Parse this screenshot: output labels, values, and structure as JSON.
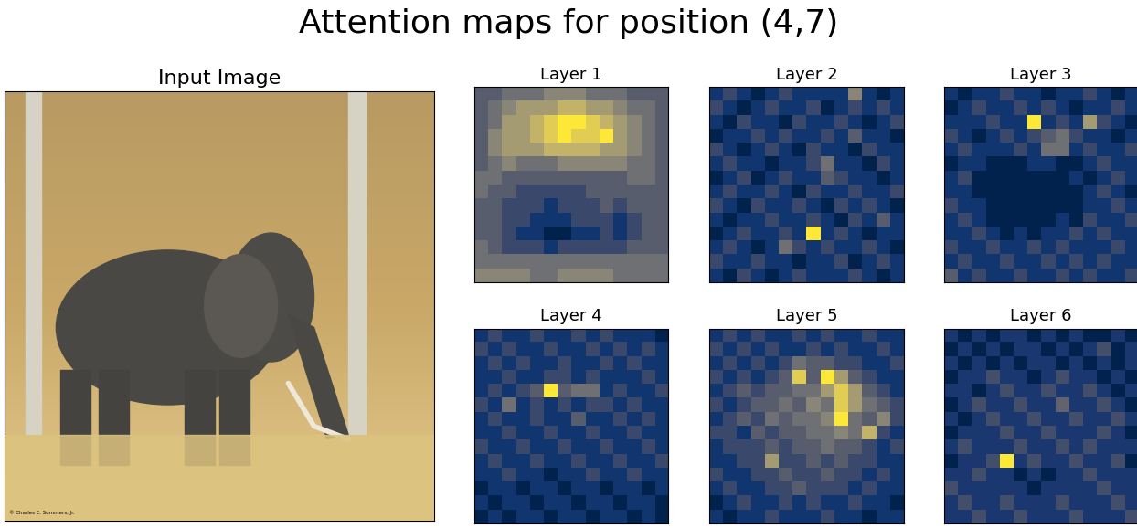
{
  "title": "Attention maps for position (4,7)",
  "input_image": {
    "title": "Input Image",
    "credit": "© Charles E. Summers, Jr."
  },
  "chart_data": [
    {
      "type": "heatmap",
      "title": "Layer 1",
      "color": "cividis",
      "tick_labels": false,
      "cells": [
        [
          3,
          3,
          4,
          4,
          4,
          5,
          5,
          5,
          4,
          4,
          4,
          3,
          3,
          3
        ],
        [
          3,
          4,
          5,
          6,
          6,
          6,
          7,
          7,
          6,
          6,
          5,
          4,
          4,
          3
        ],
        [
          3,
          4,
          6,
          6,
          7,
          8,
          9,
          9,
          8,
          7,
          6,
          5,
          4,
          3
        ],
        [
          3,
          5,
          6,
          6,
          7,
          8,
          9,
          8,
          8,
          9,
          6,
          5,
          4,
          3
        ],
        [
          3,
          5,
          6,
          6,
          6,
          7,
          7,
          7,
          7,
          6,
          6,
          5,
          4,
          3
        ],
        [
          3,
          4,
          5,
          4,
          4,
          4,
          5,
          5,
          5,
          5,
          5,
          4,
          4,
          3
        ],
        [
          4,
          4,
          3,
          3,
          3,
          3,
          3,
          3,
          3,
          3,
          3,
          4,
          4,
          3
        ],
        [
          4,
          3,
          3,
          2,
          2,
          2,
          2,
          2,
          3,
          3,
          3,
          3,
          3,
          3
        ],
        [
          3,
          3,
          2,
          2,
          2,
          1,
          2,
          2,
          2,
          3,
          2,
          3,
          3,
          3
        ],
        [
          3,
          3,
          2,
          2,
          1,
          1,
          1,
          2,
          2,
          2,
          1,
          2,
          3,
          3
        ],
        [
          3,
          3,
          2,
          1,
          1,
          0,
          0,
          1,
          1,
          2,
          1,
          2,
          3,
          3
        ],
        [
          4,
          3,
          2,
          2,
          2,
          1,
          2,
          2,
          2,
          2,
          2,
          3,
          3,
          3
        ],
        [
          4,
          4,
          4,
          4,
          4,
          4,
          4,
          4,
          4,
          4,
          4,
          4,
          4,
          4
        ],
        [
          5,
          5,
          5,
          5,
          4,
          4,
          5,
          5,
          5,
          5,
          4,
          4,
          4,
          4
        ]
      ]
    },
    {
      "type": "heatmap",
      "title": "Layer 2",
      "color": "cividis",
      "tick_labels": false,
      "cells": [
        [
          1,
          2,
          1,
          0,
          1,
          2,
          1,
          1,
          1,
          1,
          5,
          1,
          0,
          1
        ],
        [
          2,
          1,
          0,
          1,
          2,
          1,
          1,
          2,
          0,
          1,
          2,
          1,
          2,
          1
        ],
        [
          1,
          0,
          2,
          1,
          1,
          0,
          2,
          1,
          1,
          2,
          1,
          0,
          1,
          2
        ],
        [
          0,
          1,
          1,
          2,
          1,
          2,
          1,
          1,
          2,
          1,
          3,
          1,
          1,
          0
        ],
        [
          2,
          1,
          0,
          1,
          2,
          1,
          0,
          2,
          1,
          1,
          0,
          2,
          1,
          1
        ],
        [
          1,
          2,
          1,
          1,
          0,
          1,
          1,
          2,
          4,
          1,
          1,
          0,
          2,
          1
        ],
        [
          0,
          1,
          2,
          0,
          1,
          2,
          1,
          1,
          3,
          2,
          1,
          1,
          0,
          1
        ],
        [
          1,
          2,
          1,
          1,
          2,
          1,
          0,
          2,
          1,
          1,
          2,
          1,
          1,
          2
        ],
        [
          2,
          1,
          0,
          2,
          1,
          1,
          2,
          1,
          0,
          2,
          1,
          2,
          1,
          0
        ],
        [
          1,
          0,
          1,
          1,
          2,
          1,
          1,
          2,
          1,
          0,
          2,
          1,
          3,
          1
        ],
        [
          0,
          1,
          2,
          1,
          1,
          2,
          1,
          9,
          1,
          2,
          1,
          0,
          1,
          1
        ],
        [
          1,
          2,
          1,
          0,
          1,
          4,
          2,
          1,
          2,
          1,
          1,
          2,
          1,
          0
        ],
        [
          2,
          1,
          1,
          2,
          1,
          1,
          0,
          1,
          1,
          2,
          0,
          1,
          2,
          1
        ],
        [
          1,
          0,
          2,
          1,
          0,
          1,
          2,
          1,
          1,
          1,
          2,
          1,
          0,
          1
        ]
      ]
    },
    {
      "type": "heatmap",
      "title": "Layer 3",
      "color": "cividis",
      "tick_labels": false,
      "cells": [
        [
          1,
          0,
          1,
          1,
          2,
          1,
          1,
          0,
          1,
          1,
          2,
          1,
          0,
          1
        ],
        [
          0,
          1,
          2,
          1,
          1,
          2,
          1,
          2,
          1,
          0,
          1,
          1,
          2,
          1
        ],
        [
          1,
          1,
          1,
          2,
          1,
          1,
          9,
          1,
          2,
          1,
          6,
          2,
          1,
          0
        ],
        [
          2,
          1,
          0,
          1,
          2,
          1,
          2,
          3,
          4,
          2,
          1,
          1,
          0,
          1
        ],
        [
          1,
          2,
          1,
          1,
          1,
          2,
          1,
          4,
          4,
          1,
          2,
          1,
          1,
          2
        ],
        [
          0,
          1,
          1,
          0,
          0,
          0,
          1,
          1,
          0,
          0,
          1,
          2,
          1,
          1
        ],
        [
          1,
          2,
          0,
          0,
          0,
          0,
          0,
          0,
          0,
          1,
          0,
          1,
          2,
          1
        ],
        [
          1,
          1,
          0,
          0,
          0,
          0,
          0,
          0,
          0,
          0,
          1,
          2,
          1,
          0
        ],
        [
          2,
          1,
          1,
          0,
          0,
          0,
          0,
          0,
          0,
          0,
          1,
          1,
          2,
          1
        ],
        [
          1,
          2,
          1,
          0,
          0,
          0,
          0,
          0,
          1,
          0,
          2,
          1,
          1,
          2
        ],
        [
          1,
          1,
          2,
          1,
          0,
          1,
          0,
          1,
          1,
          2,
          1,
          2,
          1,
          1
        ],
        [
          2,
          1,
          1,
          2,
          1,
          1,
          2,
          1,
          2,
          1,
          1,
          1,
          2,
          1
        ],
        [
          1,
          2,
          1,
          1,
          2,
          1,
          1,
          2,
          1,
          2,
          1,
          2,
          1,
          1
        ],
        [
          3,
          1,
          2,
          1,
          1,
          2,
          1,
          1,
          2,
          1,
          2,
          1,
          1,
          2
        ]
      ]
    },
    {
      "type": "heatmap",
      "title": "Layer 4",
      "color": "cividis",
      "tick_labels": false,
      "cells": [
        [
          1,
          2,
          1,
          1,
          2,
          1,
          1,
          2,
          1,
          2,
          1,
          1,
          1,
          0
        ],
        [
          2,
          1,
          2,
          1,
          1,
          2,
          1,
          1,
          2,
          1,
          2,
          1,
          2,
          1
        ],
        [
          1,
          2,
          1,
          2,
          1,
          1,
          2,
          1,
          1,
          2,
          1,
          2,
          1,
          1
        ],
        [
          1,
          1,
          2,
          1,
          1,
          2,
          2,
          1,
          2,
          1,
          1,
          1,
          2,
          1
        ],
        [
          1,
          2,
          1,
          2,
          3,
          9,
          3,
          4,
          4,
          1,
          2,
          1,
          1,
          2
        ],
        [
          2,
          1,
          4,
          1,
          2,
          1,
          2,
          1,
          2,
          2,
          1,
          2,
          1,
          1
        ],
        [
          1,
          2,
          1,
          1,
          2,
          1,
          1,
          3,
          1,
          1,
          2,
          1,
          2,
          1
        ],
        [
          1,
          1,
          2,
          1,
          1,
          2,
          1,
          1,
          2,
          1,
          1,
          2,
          1,
          1
        ],
        [
          2,
          1,
          1,
          2,
          1,
          1,
          2,
          1,
          1,
          2,
          1,
          1,
          2,
          1
        ],
        [
          1,
          2,
          1,
          1,
          2,
          1,
          1,
          2,
          1,
          1,
          2,
          1,
          1,
          2
        ],
        [
          1,
          1,
          2,
          1,
          1,
          0,
          1,
          1,
          2,
          1,
          1,
          2,
          1,
          1
        ],
        [
          0,
          1,
          1,
          0,
          1,
          1,
          0,
          1,
          1,
          0,
          1,
          1,
          0,
          1
        ],
        [
          1,
          0,
          1,
          1,
          0,
          1,
          1,
          0,
          1,
          1,
          0,
          1,
          1,
          0
        ],
        [
          0,
          1,
          0,
          1,
          1,
          0,
          1,
          1,
          0,
          1,
          1,
          0,
          1,
          0
        ]
      ]
    },
    {
      "type": "heatmap",
      "title": "Layer 5",
      "color": "cividis",
      "tick_labels": false,
      "cells": [
        [
          1,
          2,
          1,
          2,
          1,
          1,
          2,
          1,
          2,
          1,
          1,
          2,
          1,
          1
        ],
        [
          2,
          1,
          2,
          1,
          2,
          1,
          1,
          2,
          1,
          2,
          1,
          1,
          2,
          1
        ],
        [
          1,
          2,
          1,
          2,
          1,
          2,
          4,
          3,
          3,
          2,
          2,
          1,
          1,
          2
        ],
        [
          2,
          1,
          2,
          1,
          2,
          3,
          8,
          3,
          9,
          6,
          3,
          2,
          1,
          1
        ],
        [
          1,
          2,
          3,
          2,
          3,
          3,
          4,
          4,
          6,
          8,
          6,
          3,
          2,
          1
        ],
        [
          2,
          1,
          2,
          3,
          3,
          4,
          3,
          5,
          4,
          8,
          6,
          4,
          3,
          2
        ],
        [
          1,
          2,
          3,
          2,
          4,
          3,
          4,
          4,
          5,
          9,
          4,
          3,
          5,
          2
        ],
        [
          2,
          2,
          1,
          3,
          2,
          3,
          3,
          4,
          4,
          5,
          4,
          7,
          2,
          1
        ],
        [
          1,
          2,
          2,
          2,
          3,
          2,
          3,
          3,
          4,
          3,
          3,
          2,
          1,
          2
        ],
        [
          1,
          1,
          2,
          2,
          6,
          2,
          2,
          3,
          2,
          3,
          2,
          2,
          1,
          1
        ],
        [
          2,
          1,
          1,
          2,
          2,
          3,
          2,
          2,
          3,
          2,
          2,
          1,
          2,
          1
        ],
        [
          1,
          2,
          1,
          1,
          2,
          2,
          3,
          2,
          2,
          2,
          1,
          2,
          1,
          1
        ],
        [
          0,
          1,
          2,
          1,
          1,
          2,
          1,
          2,
          1,
          1,
          2,
          1,
          1,
          0
        ],
        [
          1,
          0,
          1,
          1,
          2,
          1,
          1,
          1,
          2,
          1,
          1,
          0,
          1,
          1
        ]
      ]
    },
    {
      "type": "heatmap",
      "title": "Layer 6",
      "color": "cividis",
      "tick_labels": false,
      "cells": [
        [
          2,
          1,
          2,
          1,
          2,
          2,
          1,
          2,
          1,
          2,
          1,
          1,
          2,
          1
        ],
        [
          1,
          2,
          1,
          2,
          1,
          2,
          2,
          1,
          2,
          1,
          2,
          3,
          1,
          2
        ],
        [
          2,
          1,
          2,
          1,
          2,
          1,
          2,
          2,
          1,
          2,
          1,
          2,
          1,
          2
        ],
        [
          1,
          2,
          2,
          3,
          2,
          2,
          1,
          2,
          3,
          2,
          2,
          1,
          2,
          1
        ],
        [
          2,
          2,
          1,
          2,
          3,
          2,
          2,
          3,
          2,
          2,
          3,
          2,
          1,
          2
        ],
        [
          1,
          2,
          3,
          2,
          2,
          3,
          2,
          2,
          4,
          2,
          2,
          3,
          2,
          1
        ],
        [
          2,
          1,
          2,
          3,
          2,
          2,
          3,
          2,
          2,
          3,
          2,
          2,
          3,
          2
        ],
        [
          1,
          2,
          2,
          2,
          3,
          2,
          2,
          3,
          2,
          2,
          2,
          3,
          2,
          1
        ],
        [
          2,
          3,
          2,
          2,
          2,
          3,
          2,
          2,
          3,
          2,
          3,
          2,
          2,
          2
        ],
        [
          1,
          2,
          2,
          3,
          9,
          2,
          3,
          2,
          2,
          3,
          2,
          2,
          3,
          1
        ],
        [
          2,
          2,
          3,
          2,
          2,
          1,
          2,
          1,
          2,
          2,
          3,
          2,
          2,
          2
        ],
        [
          3,
          2,
          2,
          2,
          2,
          2,
          1,
          2,
          2,
          2,
          2,
          3,
          2,
          2
        ],
        [
          2,
          3,
          2,
          2,
          3,
          2,
          2,
          2,
          3,
          2,
          2,
          2,
          3,
          2
        ],
        [
          2,
          2,
          3,
          2,
          2,
          3,
          2,
          2,
          2,
          3,
          2,
          2,
          2,
          3
        ]
      ]
    }
  ]
}
